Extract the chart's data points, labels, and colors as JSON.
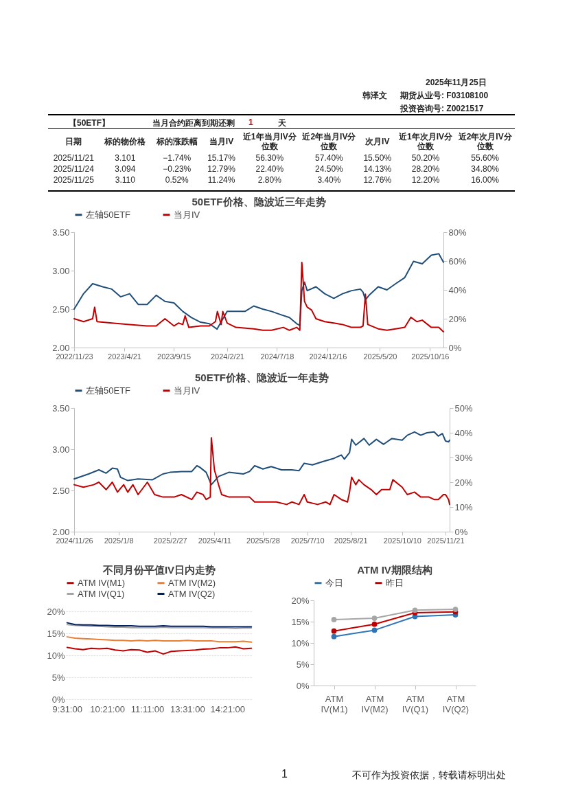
{
  "chart_data": [
    {
      "type": "other",
      "title": "【50ETF】",
      "annotations": [
        "2025年11月25日",
        "韩泽文",
        "期货从业号: F03108100",
        "投资咨询号: Z0021517",
        "当月合约距离到期还剩",
        "1",
        "天",
        "不可作为投资依据，转载请标明出处",
        "1"
      ],
      "categories": [
        "日期",
        "标的物价格",
        "标的涨跌幅",
        "当月IV",
        "近1年当月IV分位数",
        "近2年当月IV分位数",
        "次月IV",
        "近1年次月IV分位数",
        "近2年次月IV分位数"
      ],
      "cell_labels": [
        [
          "2025/11/21",
          "3.101",
          "−1.74%",
          "15.17%",
          "56.30%",
          "57.40%",
          "15.50%",
          "50.20%",
          "55.60%"
        ],
        [
          "2025/11/24",
          "3.094",
          "−0.23%",
          "12.79%",
          "22.40%",
          "24.50%",
          "14.13%",
          "28.20%",
          "34.80%"
        ],
        [
          "2025/11/25",
          "3.110",
          "0.52%",
          "11.24%",
          "2.80%",
          "3.40%",
          "12.76%",
          "12.20%",
          "16.00%"
        ]
      ]
    },
    {
      "type": "line",
      "title": "50ETF价格、隐波近三年走势",
      "legend": "top",
      "xlim": [
        "2022-11-23",
        "2025-11-25"
      ],
      "xticks": [
        {
          "value": "2022-11-23",
          "label": "2022/11/23"
        },
        {
          "value": "2023-04-21",
          "label": "2023/4/21"
        },
        {
          "value": "2023-09-15",
          "label": "2023/9/15"
        },
        {
          "value": "2024-02-21",
          "label": "2024/2/21"
        },
        {
          "value": "2024-07-18",
          "label": "2024/7/18"
        },
        {
          "value": "2024-12-16",
          "label": "2024/12/16"
        },
        {
          "value": "2025-05-20",
          "label": "2025/5/20"
        },
        {
          "value": "2025-10-16",
          "label": "2025/10/16"
        }
      ],
      "ylim": [
        2,
        3.5
      ],
      "yticks": [
        {
          "value": 2,
          "label": "2.00"
        },
        {
          "value": 2.5,
          "label": "2.50"
        },
        {
          "value": 3,
          "label": "3.00"
        },
        {
          "value": 3.5,
          "label": "3.50"
        }
      ],
      "y2lim": [
        0,
        80
      ],
      "y2ticks": [
        {
          "value": 0,
          "label": "0%"
        },
        {
          "value": 20,
          "label": "20%"
        },
        {
          "value": 40,
          "label": "40%"
        },
        {
          "value": 60,
          "label": "60%"
        },
        {
          "value": 80,
          "label": "80%"
        }
      ],
      "series": [
        {
          "name": "左轴50ETF",
          "color": "#1f4e79",
          "x": [
            "2022-11-23",
            "2022-12-21",
            "2023-01-17",
            "2023-02-16",
            "2023-03-15",
            "2023-04-10",
            "2023-05-07",
            "2023-06-02",
            "2023-06-28",
            "2023-07-25",
            "2023-08-20",
            "2023-09-16",
            "2023-10-12",
            "2023-11-07",
            "2023-12-04",
            "2023-12-30",
            "2024-01-22",
            "2024-02-21",
            "2024-03-18",
            "2024-04-14",
            "2024-05-10",
            "2024-06-06",
            "2024-07-02",
            "2024-07-28",
            "2024-08-24",
            "2024-09-15",
            "2024-09-24",
            "2024-09-30",
            "2024-10-08",
            "2024-10-16",
            "2024-11-11",
            "2024-12-07",
            "2025-01-03",
            "2025-01-29",
            "2025-02-25",
            "2025-03-23",
            "2025-03-31",
            "2025-04-07",
            "2025-04-18",
            "2025-05-15",
            "2025-06-10",
            "2025-07-06",
            "2025-08-02",
            "2025-08-28",
            "2025-09-23",
            "2025-10-20",
            "2025-11-11",
            "2025-11-25"
          ],
          "values": [
            2.5,
            2.7,
            2.83,
            2.79,
            2.76,
            2.66,
            2.7,
            2.56,
            2.56,
            2.68,
            2.6,
            2.58,
            2.47,
            2.39,
            2.33,
            2.31,
            2.24,
            2.47,
            2.47,
            2.47,
            2.54,
            2.5,
            2.47,
            2.43,
            2.39,
            2.31,
            2.29,
            2.74,
            2.85,
            2.74,
            2.79,
            2.7,
            2.64,
            2.7,
            2.74,
            2.76,
            2.72,
            2.62,
            2.68,
            2.79,
            2.75,
            2.83,
            2.91,
            3.12,
            3.09,
            3.2,
            3.22,
            3.11
          ]
        },
        {
          "name": "当月IV",
          "color": "#c00000",
          "axis": "y2",
          "x": [
            "2022-11-23",
            "2022-12-21",
            "2023-01-17",
            "2023-01-23",
            "2023-01-30",
            "2023-03-15",
            "2023-05-07",
            "2023-06-28",
            "2023-07-25",
            "2023-08-20",
            "2023-09-16",
            "2023-09-29",
            "2023-10-12",
            "2023-10-19",
            "2023-10-30",
            "2023-12-04",
            "2023-12-30",
            "2024-01-17",
            "2024-01-23",
            "2024-02-03",
            "2024-02-08",
            "2024-02-21",
            "2024-03-18",
            "2024-05-10",
            "2024-06-06",
            "2024-07-02",
            "2024-08-06",
            "2024-08-24",
            "2024-09-15",
            "2024-09-24",
            "2024-09-30",
            "2024-10-08",
            "2024-10-16",
            "2024-10-29",
            "2024-11-11",
            "2024-12-07",
            "2025-01-03",
            "2025-01-29",
            "2025-02-25",
            "2025-03-23",
            "2025-03-31",
            "2025-04-07",
            "2025-04-14",
            "2025-05-15",
            "2025-06-10",
            "2025-07-06",
            "2025-08-02",
            "2025-08-20",
            "2025-09-07",
            "2025-09-23",
            "2025-10-20",
            "2025-11-11",
            "2025-11-25"
          ],
          "values": [
            20,
            18,
            20,
            28,
            18,
            17,
            16,
            15,
            15,
            20,
            15,
            17,
            16,
            22,
            14,
            15,
            15,
            18,
            25,
            16,
            25,
            17,
            14,
            13,
            12,
            12,
            14,
            12,
            14,
            12,
            59,
            32,
            28,
            26,
            20,
            18,
            17,
            16,
            14,
            14,
            15,
            37,
            16,
            13,
            12,
            13,
            14,
            21,
            18,
            19,
            14,
            14,
            11
          ]
        }
      ]
    },
    {
      "type": "line",
      "title": "50ETF价格、隐波近一年走势",
      "legend": "top",
      "xlim": [
        "2024-11-26",
        "2025-11-25"
      ],
      "xticks": [
        {
          "value": "2024-11-26",
          "label": "2024/11/26"
        },
        {
          "value": "2025-01-08",
          "label": "2025/1/8"
        },
        {
          "value": "2025-02-27",
          "label": "2025/2/27"
        },
        {
          "value": "2025-04-11",
          "label": "2025/4/11"
        },
        {
          "value": "2025-05-28",
          "label": "2025/5/28"
        },
        {
          "value": "2025-07-10",
          "label": "2025/7/10"
        },
        {
          "value": "2025-08-21",
          "label": "2025/8/21"
        },
        {
          "value": "2025-10-10",
          "label": "2025/10/10"
        },
        {
          "value": "2025-11-21",
          "label": "2025/11/21"
        }
      ],
      "ylim": [
        2,
        3.5
      ],
      "yticks": [
        {
          "value": 2,
          "label": "2.00"
        },
        {
          "value": 2.5,
          "label": "2.50"
        },
        {
          "value": 3,
          "label": "3.00"
        },
        {
          "value": 3.5,
          "label": "3.50"
        }
      ],
      "y2lim": [
        0,
        50
      ],
      "y2ticks": [
        {
          "value": 0,
          "label": "0%"
        },
        {
          "value": 10,
          "label": "10%"
        },
        {
          "value": 20,
          "label": "20%"
        },
        {
          "value": 30,
          "label": "30%"
        },
        {
          "value": 40,
          "label": "40%"
        },
        {
          "value": 50,
          "label": "50%"
        }
      ],
      "series": [
        {
          "name": "左轴50ETF",
          "color": "#1f4e79",
          "x": [
            "2024-11-26",
            "2024-12-10",
            "2024-12-20",
            "2024-12-27",
            "2025-01-02",
            "2025-01-07",
            "2025-01-10",
            "2025-01-17",
            "2025-01-27",
            "2025-02-10",
            "2025-02-20",
            "2025-02-27",
            "2025-03-10",
            "2025-03-20",
            "2025-03-25",
            "2025-03-28",
            "2025-04-03",
            "2025-04-08",
            "2025-04-15",
            "2025-04-25",
            "2025-05-09",
            "2025-05-15",
            "2025-05-20",
            "2025-05-28",
            "2025-06-05",
            "2025-06-15",
            "2025-06-25",
            "2025-07-02",
            "2025-07-07",
            "2025-07-15",
            "2025-07-25",
            "2025-08-05",
            "2025-08-12",
            "2025-08-15",
            "2025-08-20",
            "2025-08-22",
            "2025-08-26",
            "2025-09-03",
            "2025-09-08",
            "2025-09-15",
            "2025-09-22",
            "2025-09-30",
            "2025-10-10",
            "2025-10-15",
            "2025-10-22",
            "2025-10-28",
            "2025-11-03",
            "2025-11-10",
            "2025-11-14",
            "2025-11-18",
            "2025-11-21",
            "2025-11-24",
            "2025-11-25"
          ],
          "values": [
            2.64,
            2.7,
            2.75,
            2.71,
            2.77,
            2.76,
            2.66,
            2.62,
            2.64,
            2.63,
            2.7,
            2.72,
            2.73,
            2.73,
            2.8,
            2.78,
            2.72,
            2.57,
            2.67,
            2.72,
            2.7,
            2.73,
            2.8,
            2.76,
            2.79,
            2.75,
            2.75,
            2.74,
            2.83,
            2.81,
            2.85,
            2.89,
            2.93,
            2.88,
            2.96,
            3.12,
            3.05,
            3.13,
            3.05,
            3.12,
            3.06,
            3.13,
            3.11,
            3.17,
            3.21,
            3.17,
            3.2,
            3.21,
            3.16,
            3.19,
            3.1,
            3.09,
            3.11
          ]
        },
        {
          "name": "当月IV",
          "color": "#c00000",
          "axis": "y2",
          "x": [
            "2024-11-26",
            "2024-12-05",
            "2024-12-15",
            "2024-12-20",
            "2024-12-27",
            "2025-01-02",
            "2025-01-07",
            "2025-01-13",
            "2025-01-17",
            "2025-01-22",
            "2025-01-27",
            "2025-02-05",
            "2025-02-12",
            "2025-02-20",
            "2025-03-03",
            "2025-03-10",
            "2025-03-20",
            "2025-03-25",
            "2025-03-31",
            "2025-04-03",
            "2025-04-07",
            "2025-04-08",
            "2025-04-11",
            "2025-04-15",
            "2025-04-18",
            "2025-04-25",
            "2025-05-09",
            "2025-05-15",
            "2025-05-20",
            "2025-05-28",
            "2025-06-10",
            "2025-06-20",
            "2025-06-25",
            "2025-07-02",
            "2025-07-07",
            "2025-07-10",
            "2025-07-20",
            "2025-07-28",
            "2025-08-01",
            "2025-08-05",
            "2025-08-12",
            "2025-08-18",
            "2025-08-20",
            "2025-08-22",
            "2025-08-26",
            "2025-08-29",
            "2025-09-03",
            "2025-09-10",
            "2025-09-15",
            "2025-09-20",
            "2025-09-28",
            "2025-10-01",
            "2025-10-10",
            "2025-10-15",
            "2025-10-22",
            "2025-10-28",
            "2025-11-05",
            "2025-11-10",
            "2025-11-14",
            "2025-11-19",
            "2025-11-21",
            "2025-11-24",
            "2025-11-25"
          ],
          "values": [
            19,
            18,
            19,
            20,
            17,
            20,
            16,
            19,
            16,
            19,
            15,
            20,
            15,
            14,
            14,
            15,
            13,
            16,
            15,
            13,
            14,
            38,
            25,
            19,
            15,
            14,
            14,
            14,
            12,
            12,
            12,
            11,
            12,
            11,
            15,
            12,
            11,
            12,
            11,
            15,
            13,
            12,
            16,
            22,
            19,
            21,
            19,
            17,
            15,
            17,
            17,
            21,
            18,
            15,
            16,
            14,
            14,
            13,
            13,
            15,
            15,
            13,
            11
          ]
        }
      ]
    },
    {
      "type": "line",
      "title": "不同月份平值IV日内走势",
      "legend": "top",
      "grid": "y",
      "categories": [
        "9:31:00",
        null,
        null,
        null,
        null,
        "10:21:00",
        null,
        null,
        null,
        null,
        "11:11:00",
        null,
        null,
        null,
        null,
        "13:31:00",
        null,
        null,
        null,
        null,
        "14:21:00",
        null,
        null,
        null
      ],
      "ylim": [
        0,
        20
      ],
      "yticks": [
        {
          "value": 0,
          "label": "0%"
        },
        {
          "value": 5,
          "label": "5%"
        },
        {
          "value": 10,
          "label": "10%"
        },
        {
          "value": 15,
          "label": "15%"
        },
        {
          "value": 20,
          "label": "20%"
        }
      ],
      "series": [
        {
          "name": "ATM IV(M1)",
          "color": "#c00000",
          "values": [
            11.8,
            11.5,
            11.3,
            11.6,
            11.5,
            11.6,
            11.2,
            11.0,
            11.3,
            11.2,
            10.7,
            11.0,
            10.3,
            10.9,
            11.0,
            11.1,
            11.2,
            11.4,
            11.5,
            11.7,
            11.7,
            11.9,
            11.5,
            11.6
          ]
        },
        {
          "name": "ATM IV(M2)",
          "color": "#ed7d31",
          "values": [
            14.2,
            13.9,
            13.8,
            13.7,
            13.6,
            13.5,
            13.4,
            13.4,
            13.3,
            13.4,
            13.3,
            13.4,
            13.3,
            13.3,
            13.3,
            13.4,
            13.3,
            13.3,
            13.3,
            13.1,
            13.1,
            13.1,
            13.2,
            13.0
          ]
        },
        {
          "name": "ATM IV(Q1)",
          "color": "#a5a5a5",
          "values": [
            17.0,
            16.8,
            16.7,
            16.6,
            16.6,
            16.5,
            16.4,
            16.4,
            16.3,
            16.3,
            16.3,
            16.3,
            16.4,
            16.3,
            16.3,
            16.3,
            16.3,
            16.3,
            16.2,
            16.2,
            16.2,
            16.1,
            16.2,
            16.2
          ]
        },
        {
          "name": "ATM IV(Q2)",
          "color": "#002060",
          "values": [
            17.4,
            17.0,
            16.9,
            16.9,
            16.8,
            16.8,
            16.7,
            16.7,
            16.7,
            16.6,
            16.6,
            16.6,
            16.7,
            16.6,
            16.6,
            16.6,
            16.6,
            16.6,
            16.5,
            16.5,
            16.5,
            16.5,
            16.5,
            16.5
          ]
        }
      ]
    },
    {
      "type": "line",
      "title": "ATM IV期限结构",
      "legend": "top",
      "marker": "circle",
      "categories": [
        "ATM IV(M1)",
        "ATM IV(M2)",
        "ATM IV(Q1)",
        "ATM IV(Q2)"
      ],
      "ylim": [
        0,
        20
      ],
      "yticks": [
        {
          "value": 0,
          "label": "0%"
        },
        {
          "value": 5,
          "label": "5%"
        },
        {
          "value": 10,
          "label": "10%"
        },
        {
          "value": 15,
          "label": "15%"
        },
        {
          "value": 20,
          "label": "20%"
        }
      ],
      "series": [
        {
          "name": "今日",
          "color": "#2e75b6",
          "values": [
            11.5,
            13.0,
            16.2,
            16.6
          ]
        },
        {
          "name": "昨日",
          "color": "#c00000",
          "values": [
            12.8,
            14.4,
            17.1,
            17.3
          ]
        },
        {
          "color": "#a6a6a6",
          "values": [
            15.5,
            15.8,
            17.7,
            17.9
          ]
        }
      ]
    }
  ]
}
